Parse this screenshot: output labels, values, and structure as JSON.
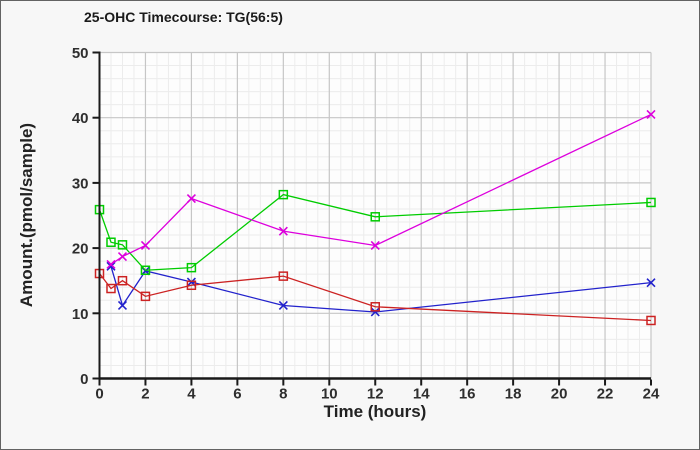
{
  "window": {
    "background": "#f7f7f7",
    "plot_background": "#fdfdfd",
    "border_color": "#636363",
    "major_grid_color": "#c6c6c6",
    "minor_grid_color": "#ececec",
    "axis_color": "#1a1a1a",
    "tick_text_color": "#2e2e2e"
  },
  "chart_data": {
    "type": "line",
    "title": "25-OHC Timecourse: TG(56:5)",
    "xlabel": "Time (hours)",
    "ylabel": "Amount.(pmol/sample)",
    "xlim": [
      0,
      24
    ],
    "ylim": [
      0,
      50
    ],
    "x_ticks": [
      0,
      2,
      4,
      6,
      8,
      10,
      12,
      14,
      16,
      18,
      20,
      22,
      24
    ],
    "y_ticks": [
      0,
      10,
      20,
      30,
      40,
      50
    ],
    "x_minor_step": 0.5,
    "y_minor_step": 2,
    "grid": true,
    "legend": "none",
    "series": [
      {
        "name": "blue-x-series",
        "color": "#2222cc",
        "marker": "x",
        "x": [
          0.5,
          1,
          2,
          4,
          8,
          12,
          24
        ],
        "y": [
          17.2,
          11.2,
          16.5,
          14.8,
          11.2,
          10.2,
          14.7
        ]
      },
      {
        "name": "red-square-series",
        "color": "#cc2222",
        "marker": "square",
        "x": [
          0,
          0.5,
          1,
          2,
          4,
          8,
          12,
          24
        ],
        "y": [
          16.1,
          13.8,
          15.0,
          12.6,
          14.3,
          15.7,
          11.0,
          8.9
        ]
      },
      {
        "name": "green-square-series",
        "color": "#00cc00",
        "marker": "square",
        "x": [
          0,
          0.5,
          1,
          2,
          4,
          8,
          12,
          24
        ],
        "y": [
          25.9,
          20.9,
          20.5,
          16.6,
          17.0,
          28.2,
          24.8,
          27.0
        ]
      },
      {
        "name": "magenta-x-series",
        "color": "#dd00dd",
        "marker": "x",
        "x": [
          0.5,
          1,
          2,
          4,
          8,
          12,
          24
        ],
        "y": [
          17.5,
          18.7,
          20.4,
          27.6,
          22.6,
          20.4,
          40.5
        ]
      }
    ]
  }
}
